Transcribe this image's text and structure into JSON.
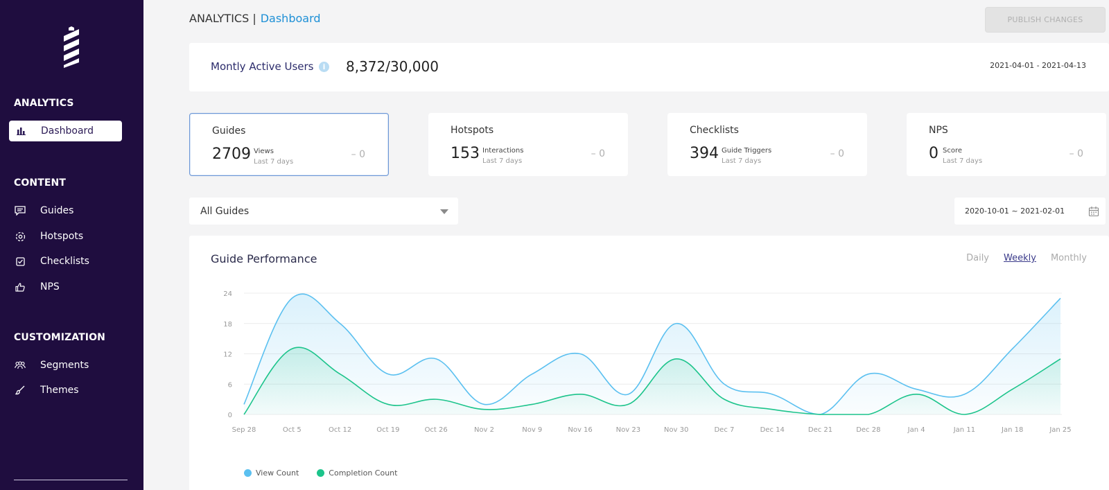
{
  "sidebar": {
    "sections": {
      "analytics": "ANALYTICS",
      "content": "CONTENT",
      "customization": "CUSTOMIZATION"
    },
    "items": {
      "dashboard": "Dashboard",
      "guides": "Guides",
      "hotspots": "Hotspots",
      "checklists": "Checklists",
      "nps": "NPS",
      "segments": "Segments",
      "themes": "Themes"
    },
    "active_item": "dashboard"
  },
  "header": {
    "section": "ANALYTICS |",
    "page": "Dashboard",
    "publish_label": "PUBLISH CHANGES"
  },
  "mau": {
    "label": "Montly Active Users",
    "value": "8,372/30,000",
    "range": "2021-04-01 - 2021-04-13"
  },
  "stats": [
    {
      "title": "Guides",
      "value": "2709",
      "metric": "Views",
      "period": "Last 7 days",
      "delta": "– 0",
      "selected": true
    },
    {
      "title": "Hotspots",
      "value": "153",
      "metric": "Interactions",
      "period": "Last 7 days",
      "delta": "– 0",
      "selected": false
    },
    {
      "title": "Checklists",
      "value": "394",
      "metric": "Guide Triggers",
      "period": "Last 7 days",
      "delta": "– 0",
      "selected": false
    },
    {
      "title": "NPS",
      "value": "0",
      "metric": "Score",
      "period": "Last 7 days",
      "delta": "– 0",
      "selected": false
    }
  ],
  "filters": {
    "guide_select": "All Guides",
    "date_range": "2020-10-01 ~ 2021-02-01"
  },
  "chart": {
    "title": "Guide Performance",
    "periods": [
      "Daily",
      "Weekly",
      "Monthly"
    ],
    "active_period": "Weekly"
  },
  "colors": {
    "sidebar_bg": "#1f0d3f",
    "view_count": "#5bc0f0",
    "completion_count": "#1cc48b",
    "accent_link": "#1e90d6"
  },
  "chart_data": {
    "type": "area",
    "categories": [
      "Sep 28",
      "Oct 5",
      "Oct 12",
      "Oct 19",
      "Oct 26",
      "Nov 2",
      "Nov 9",
      "Nov 16",
      "Nov 23",
      "Nov 30",
      "Dec 7",
      "Dec 14",
      "Dec 21",
      "Dec 28",
      "Jan 4",
      "Jan 11",
      "Jan 18",
      "Jan 25"
    ],
    "series": [
      {
        "name": "View Count",
        "color": "#5bc0f0",
        "values": [
          2,
          23,
          18,
          8,
          11,
          2,
          8,
          12,
          4,
          18,
          6,
          4,
          0,
          8,
          5,
          4,
          13,
          23
        ]
      },
      {
        "name": "Completion Count",
        "color": "#1cc48b",
        "values": [
          0,
          13,
          8,
          2,
          3,
          1,
          2,
          4,
          2,
          11,
          3,
          1,
          0,
          0,
          4,
          0,
          5,
          11
        ]
      }
    ],
    "yticks": [
      0,
      6,
      12,
      18,
      24
    ],
    "ylim": [
      0,
      24
    ],
    "grid": true,
    "legend_position": "bottom-left"
  }
}
